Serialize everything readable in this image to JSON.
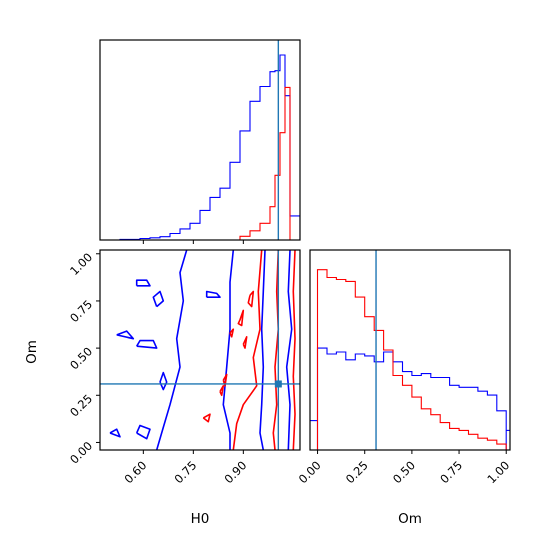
{
  "colors": {
    "series_a": "#0000ff",
    "series_b": "#ff0000",
    "truth": "#1f77b4",
    "axes": "#000000",
    "background": "#ffffff"
  },
  "chart_data": [
    {
      "type": "histogram",
      "panel": "H0 marginal (top-left)",
      "x_variable": "H0",
      "xlim": [
        0.47,
        1.07
      ],
      "xticks": [
        0.6,
        0.75,
        0.9
      ],
      "xtick_labels_shown": false,
      "yticks_shown": false,
      "truth_x": 1.005,
      "bin_edges": [
        0.47,
        0.5,
        0.53,
        0.56,
        0.59,
        0.62,
        0.65,
        0.68,
        0.71,
        0.74,
        0.77,
        0.8,
        0.83,
        0.86,
        0.89,
        0.92,
        0.95,
        0.98,
        0.995,
        1.01,
        1.025,
        1.04,
        1.07
      ],
      "series": [
        {
          "color": "#0000ff",
          "counts": [
            0.0,
            0.0,
            0.003,
            0.003,
            0.008,
            0.012,
            0.018,
            0.035,
            0.06,
            0.09,
            0.16,
            0.23,
            0.28,
            0.42,
            0.59,
            0.75,
            0.83,
            0.91,
            0.915,
            1.0,
            0.78,
            0.13
          ]
        },
        {
          "color": "#ff0000",
          "counts": [
            0,
            0,
            0,
            0,
            0,
            0,
            0,
            0,
            0,
            0,
            0,
            0,
            0,
            0,
            0.02,
            0.05,
            0.09,
            0.18,
            0.35,
            0.58,
            0.825,
            0.0
          ]
        }
      ]
    },
    {
      "type": "contour",
      "panel": "H0 vs Om (bottom-left)",
      "xlabel": "H0",
      "ylabel": "Om",
      "xlim": [
        0.47,
        1.07
      ],
      "ylim": [
        -0.04,
        1.02
      ],
      "xticks": [
        0.6,
        0.75,
        0.9
      ],
      "xtick_labels": [
        "0.60",
        "0.75",
        "0.90"
      ],
      "yticks": [
        0.0,
        0.25,
        0.5,
        0.75,
        1.0
      ],
      "ytick_labels": [
        "0.00",
        "0.25",
        "0.50",
        "0.75",
        "1.00"
      ],
      "truth": {
        "H0": 1.005,
        "Om": 0.31
      },
      "series": [
        {
          "color": "#0000ff",
          "contours": [
            [
              [
                0.73,
                1.02
              ],
              [
                0.71,
                0.9
              ],
              [
                0.72,
                0.75
              ],
              [
                0.7,
                0.55
              ],
              [
                0.71,
                0.4
              ],
              [
                0.68,
                0.2
              ],
              [
                0.66,
                0.08
              ],
              [
                0.64,
                -0.04
              ]
            ],
            [
              [
                0.87,
                1.02
              ],
              [
                0.86,
                0.85
              ],
              [
                0.86,
                0.6
              ],
              [
                0.85,
                0.4
              ],
              [
                0.84,
                0.2
              ],
              [
                0.86,
                0.05
              ],
              [
                0.86,
                -0.04
              ]
            ],
            [
              [
                0.965,
                1.02
              ],
              [
                0.96,
                0.8
              ],
              [
                0.955,
                0.6
              ],
              [
                0.96,
                0.4
              ],
              [
                0.955,
                0.2
              ],
              [
                0.95,
                0.05
              ],
              [
                0.96,
                -0.04
              ]
            ],
            [
              [
                1.04,
                1.02
              ],
              [
                1.035,
                0.8
              ],
              [
                1.045,
                0.6
              ],
              [
                1.03,
                0.4
              ],
              [
                1.04,
                0.2
              ],
              [
                1.035,
                -0.04
              ]
            ],
            [
              [
                0.58,
                0.83
              ],
              [
                0.62,
                0.83
              ],
              [
                0.61,
                0.86
              ],
              [
                0.58,
                0.86
              ],
              [
                0.58,
                0.83
              ]
            ],
            [
              [
                0.64,
                0.72
              ],
              [
                0.66,
                0.75
              ],
              [
                0.65,
                0.8
              ],
              [
                0.63,
                0.77
              ],
              [
                0.64,
                0.72
              ]
            ],
            [
              [
                0.79,
                0.77
              ],
              [
                0.83,
                0.77
              ],
              [
                0.82,
                0.79
              ],
              [
                0.79,
                0.8
              ],
              [
                0.79,
                0.77
              ]
            ],
            [
              [
                0.52,
                0.57
              ],
              [
                0.57,
                0.55
              ],
              [
                0.55,
                0.59
              ],
              [
                0.52,
                0.57
              ]
            ],
            [
              [
                0.58,
                0.51
              ],
              [
                0.64,
                0.5
              ],
              [
                0.63,
                0.54
              ],
              [
                0.59,
                0.54
              ],
              [
                0.58,
                0.51
              ]
            ],
            [
              [
                0.65,
                0.32
              ],
              [
                0.66,
                0.37
              ],
              [
                0.67,
                0.32
              ],
              [
                0.66,
                0.28
              ],
              [
                0.65,
                0.32
              ]
            ],
            [
              [
                0.5,
                0.05
              ],
              [
                0.53,
                0.03
              ],
              [
                0.52,
                0.07
              ],
              [
                0.5,
                0.05
              ]
            ],
            [
              [
                0.58,
                0.05
              ],
              [
                0.61,
                0.02
              ],
              [
                0.62,
                0.07
              ],
              [
                0.59,
                0.09
              ],
              [
                0.58,
                0.05
              ]
            ]
          ]
        },
        {
          "color": "#ff0000",
          "contours": [
            [
              [
                0.955,
                1.02
              ],
              [
                0.945,
                0.8
              ],
              [
                0.95,
                0.6
              ],
              [
                0.93,
                0.45
              ],
              [
                0.94,
                0.3
              ],
              [
                0.9,
                0.2
              ],
              [
                0.88,
                0.1
              ],
              [
                0.87,
                -0.04
              ]
            ],
            [
              [
                1.005,
                1.02
              ],
              [
                1.0,
                0.8
              ],
              [
                1.005,
                0.6
              ],
              [
                0.995,
                0.4
              ],
              [
                1.0,
                0.2
              ],
              [
                0.99,
                0.05
              ],
              [
                0.995,
                -0.04
              ]
            ],
            [
              [
                1.055,
                1.02
              ],
              [
                1.05,
                0.8
              ],
              [
                1.055,
                0.55
              ],
              [
                1.05,
                0.35
              ],
              [
                1.055,
                0.15
              ],
              [
                1.05,
                -0.04
              ]
            ],
            [
              [
                0.92,
                0.78
              ],
              [
                0.93,
                0.8
              ],
              [
                0.925,
                0.72
              ],
              [
                0.915,
                0.74
              ],
              [
                0.92,
                0.78
              ]
            ],
            [
              [
                0.89,
                0.65
              ],
              [
                0.9,
                0.7
              ],
              [
                0.895,
                0.62
              ],
              [
                0.885,
                0.63
              ],
              [
                0.89,
                0.65
              ]
            ],
            [
              [
                0.86,
                0.58
              ],
              [
                0.87,
                0.6
              ],
              [
                0.865,
                0.56
              ],
              [
                0.86,
                0.58
              ]
            ],
            [
              [
                0.9,
                0.52
              ],
              [
                0.91,
                0.56
              ],
              [
                0.905,
                0.5
              ],
              [
                0.9,
                0.52
              ]
            ],
            [
              [
                0.84,
                0.33
              ],
              [
                0.85,
                0.36
              ],
              [
                0.845,
                0.3
              ],
              [
                0.84,
                0.33
              ]
            ],
            [
              [
                0.78,
                0.13
              ],
              [
                0.8,
                0.15
              ],
              [
                0.795,
                0.11
              ],
              [
                0.78,
                0.13
              ]
            ],
            [
              [
                0.83,
                0.27
              ],
              [
                0.84,
                0.3
              ],
              [
                0.835,
                0.25
              ],
              [
                0.83,
                0.27
              ]
            ]
          ]
        }
      ]
    },
    {
      "type": "histogram",
      "panel": "Om marginal (bottom-right)",
      "xlabel": "Om",
      "xlim": [
        -0.04,
        1.02
      ],
      "xticks": [
        0.0,
        0.25,
        0.5,
        0.75,
        1.0
      ],
      "xtick_labels": [
        "0.00",
        "0.25",
        "0.50",
        "0.75",
        "1.00"
      ],
      "yticks_shown": false,
      "truth_x": 0.31,
      "bin_edges": [
        0.0,
        0.05,
        0.1,
        0.15,
        0.2,
        0.25,
        0.3,
        0.35,
        0.4,
        0.45,
        0.5,
        0.55,
        0.6,
        0.65,
        0.7,
        0.75,
        0.8,
        0.85,
        0.9,
        0.95,
        1.0
      ],
      "series": [
        {
          "color": "#0000ff",
          "counts": [
            0.52,
            0.49,
            0.5,
            0.46,
            0.49,
            0.48,
            0.45,
            0.5,
            0.45,
            0.4,
            0.38,
            0.39,
            0.37,
            0.37,
            0.33,
            0.32,
            0.32,
            0.3,
            0.28,
            0.2
          ]
        },
        {
          "color": "#ff0000",
          "counts": [
            0.92,
            0.88,
            0.87,
            0.86,
            0.78,
            0.68,
            0.61,
            0.51,
            0.38,
            0.33,
            0.27,
            0.21,
            0.18,
            0.14,
            0.11,
            0.1,
            0.08,
            0.06,
            0.05,
            0.03
          ]
        }
      ],
      "left_edge_series": {
        "color": "#0000ff",
        "x": -0.04,
        "count": 0.15
      }
    }
  ]
}
